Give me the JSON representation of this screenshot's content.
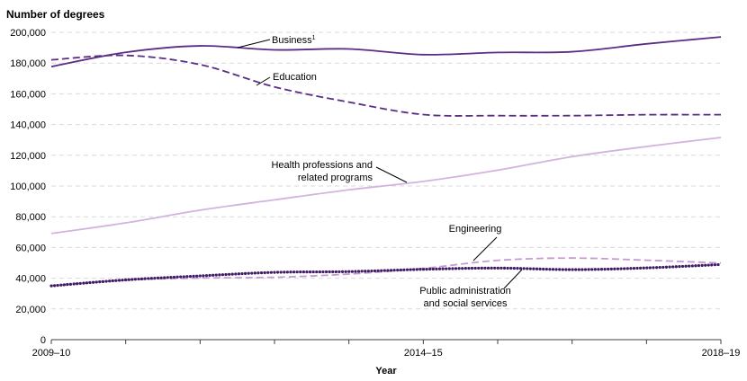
{
  "chart_data": {
    "type": "line",
    "ylabel": "Number of degrees",
    "xlabel": "Year",
    "x": [
      0,
      1,
      2,
      3,
      4,
      5,
      6,
      7,
      8,
      9
    ],
    "x_tick_labels": [
      {
        "x": 0,
        "label": "2009–10"
      },
      {
        "x": 5,
        "label": "2014–15"
      },
      {
        "x": 9,
        "label": "2018–19"
      }
    ],
    "ylim": [
      0,
      200000
    ],
    "y_ticks": [
      "0",
      "20,000",
      "40,000",
      "60,000",
      "80,000",
      "100,000",
      "120,000",
      "140,000",
      "160,000",
      "180,000",
      "200,000"
    ],
    "grid": true,
    "series": [
      {
        "name": "Business",
        "superscript": "1",
        "style": "solid",
        "color": "#5b2d84",
        "values": [
          177700,
          187000,
          191200,
          188600,
          189200,
          185500,
          186900,
          187400,
          192500,
          197000
        ]
      },
      {
        "name": "Education",
        "style": "dash",
        "color": "#5b2d84",
        "values": [
          182100,
          185000,
          179000,
          164500,
          154600,
          146500,
          145800,
          145800,
          146400,
          146400
        ]
      },
      {
        "name": "Health professions and related programs",
        "label_lines": [
          "Health professions and",
          "related programs"
        ],
        "style": "solid",
        "color": "#d2b4dd",
        "values": [
          69100,
          76000,
          84300,
          91000,
          97500,
          103000,
          110300,
          119100,
          125700,
          131600
        ]
      },
      {
        "name": "Engineering",
        "style": "dash",
        "color": "#c49bd0",
        "values": [
          35200,
          38800,
          40100,
          40600,
          42700,
          46400,
          51600,
          53100,
          51700,
          49900
        ]
      },
      {
        "name": "Public administration and social services",
        "label_lines": [
          "Public administration",
          "and social services"
        ],
        "style": "dot",
        "color": "#3f1c63",
        "values": [
          35000,
          38900,
          41500,
          43800,
          44300,
          45800,
          46600,
          45600,
          46700,
          48900
        ]
      }
    ]
  }
}
